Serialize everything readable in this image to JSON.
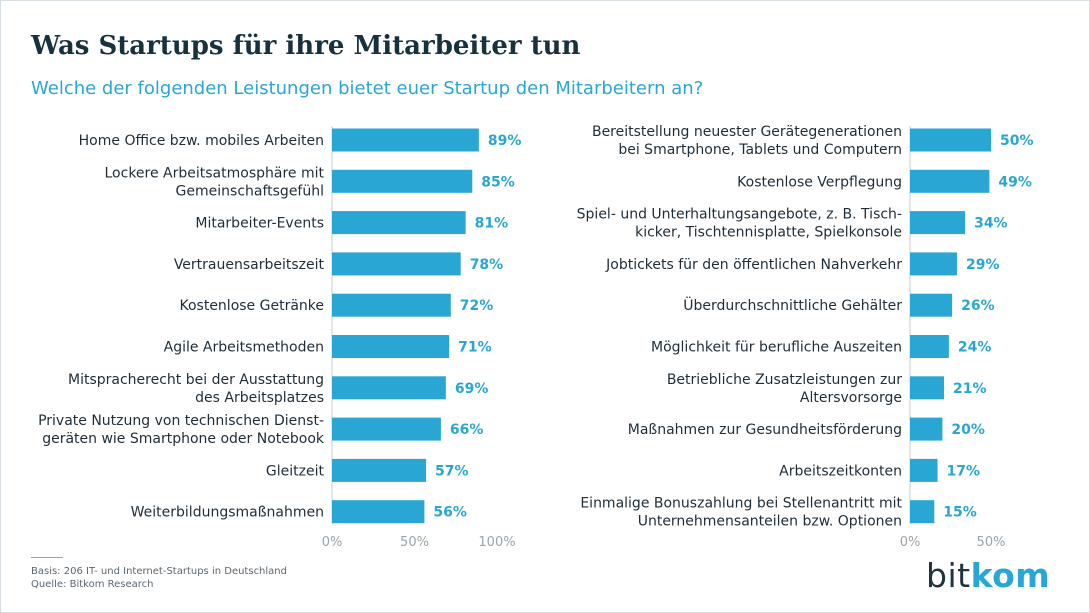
{
  "title": "Was Startups für ihre Mitarbeiter tun",
  "subtitle": "Welche der folgenden Leistungen bietet euer Startup den Mitarbeitern an?",
  "footer": {
    "basis": "Basis: 206 IT- und Internet-Startups in Deutschland",
    "quelle": "Quelle: Bitkom Research"
  },
  "logo": {
    "part1": "bit",
    "part2": "kom"
  },
  "colors": {
    "bar": "#2aa6d5",
    "title": "#17313f",
    "subtitle": "#2aa6d5"
  },
  "chart_data": [
    {
      "type": "bar",
      "orientation": "horizontal",
      "categories": [
        "Home Office bzw. mobiles Arbeiten",
        "Lockere Arbeitsatmosphäre mit\nGemeinschaftsgefühl",
        "Mitarbeiter-Events",
        "Vertrauensarbeitszeit",
        "Kostenlose Getränke",
        "Agile Arbeitsmethoden",
        "Mitspracherecht bei der Ausstattung\ndes Arbeitsplatzes",
        "Private Nutzung von technischen Dienst-\ngeräten wie Smartphone oder Notebook",
        "Gleitzeit",
        "Weiterbildungsmaßnahmen"
      ],
      "values": [
        89,
        85,
        81,
        78,
        72,
        71,
        69,
        66,
        57,
        56
      ],
      "value_labels": [
        "89%",
        "85%",
        "81%",
        "78%",
        "72%",
        "71%",
        "69%",
        "66%",
        "57%",
        "56%"
      ],
      "xlim": [
        0,
        100
      ],
      "ticks": [
        0,
        50,
        100
      ],
      "tick_labels": [
        "0%",
        "50%",
        "100%"
      ]
    },
    {
      "type": "bar",
      "orientation": "horizontal",
      "categories": [
        "Bereitstellung neuester Gerätegenerationen\nbei Smartphone, Tablets und Computern",
        "Kostenlose Verpflegung",
        "Spiel- und Unterhaltungsangebote, z. B. Tisch-\nkicker, Tischtennisplatte, Spielkonsole",
        "Jobtickets für den öffentlichen Nahverkehr",
        "Überdurchschnittliche Gehälter",
        "Möglichkeit für berufliche Auszeiten",
        "Betriebliche Zusatzleistungen zur\nAltersvorsorge",
        "Maßnahmen zur Gesundheitsförderung",
        "Arbeitszeitkonten",
        "Einmalige Bonuszahlung bei Stellenantritt mit\nUnternehmensanteilen bzw. Optionen"
      ],
      "values": [
        50,
        49,
        34,
        29,
        26,
        24,
        21,
        20,
        17,
        15
      ],
      "value_labels": [
        "50%",
        "49%",
        "34%",
        "29%",
        "26%",
        "24%",
        "21%",
        "20%",
        "17%",
        "15%"
      ],
      "xlim": [
        0,
        50
      ],
      "ticks": [
        0,
        50
      ],
      "tick_labels": [
        "0%",
        "50%"
      ]
    }
  ]
}
